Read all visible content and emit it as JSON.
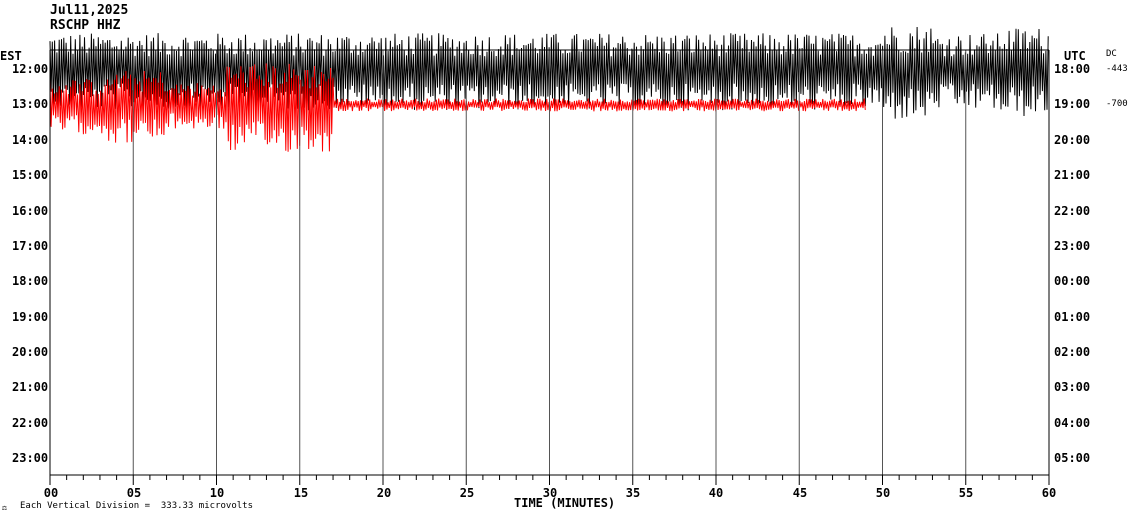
{
  "header": {
    "date": "Jul11,2025",
    "station": "RSCHP HHZ"
  },
  "corner": {
    "left_zone": "EST",
    "right_zone": "UTC",
    "dc_label": "DC",
    "dc_values": [
      "-443",
      "-700"
    ]
  },
  "footer": {
    "note": "Each Vertical Division =  333.33 microvolts"
  },
  "chart_data": {
    "type": "line",
    "title": "",
    "xlabel": "TIME (MINUTES)",
    "xlim": [
      0,
      60
    ],
    "x_ticks": [
      "00",
      "05",
      "10",
      "15",
      "20",
      "25",
      "30",
      "35",
      "40",
      "45",
      "50",
      "55",
      "60"
    ],
    "y_ticks_left": [
      "12:00",
      "13:00",
      "14:00",
      "15:00",
      "16:00",
      "17:00",
      "18:00",
      "19:00",
      "20:00",
      "21:00",
      "22:00",
      "23:00"
    ],
    "y_ticks_right": [
      "18:00",
      "19:00",
      "20:00",
      "21:00",
      "22:00",
      "23:00",
      "00:00",
      "01:00",
      "02:00",
      "03:00",
      "04:00",
      "05:00"
    ],
    "grid": "vertical every 5 minutes",
    "series": [
      {
        "trace_hour": "12:00",
        "color": "#000000",
        "start_min": 0,
        "end_min": 60,
        "amplitude": "high, clipped"
      },
      {
        "trace_hour": "13:00",
        "color": "#ff0000",
        "start_min": 0,
        "end_min": 49,
        "amplitude": "high until ~17 min, low after"
      }
    ]
  }
}
